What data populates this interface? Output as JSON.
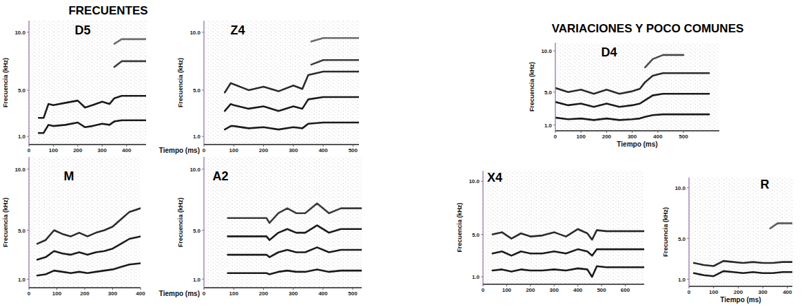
{
  "headings": [
    "FRECUENTES",
    "VARIACIONES Y POCO COMUNES"
  ],
  "chart_data": [
    {
      "type": "line",
      "title": "D5",
      "y_label": "Frecuencia (kHz)",
      "xlim": [
        0,
        480
      ],
      "ylim": [
        0.3,
        11
      ],
      "xticks": [
        0,
        100,
        200,
        300,
        400
      ],
      "yticks": [
        {
          "value": 1,
          "label": "1.0"
        },
        {
          "value": 5,
          "label": "5.0"
        },
        {
          "value": 10,
          "label": "10.0"
        }
      ],
      "series": [
        {
          "color": "#1a1a1a",
          "x": [
            40,
            60,
            80,
            100,
            150,
            200,
            230,
            260,
            300,
            330,
            350,
            380,
            480
          ],
          "values": [
            1.3,
            1.3,
            2.0,
            1.9,
            2.0,
            2.2,
            1.8,
            1.9,
            2.1,
            2.0,
            2.3,
            2.4,
            2.4
          ]
        },
        {
          "color": "#1a1a1a",
          "x": [
            40,
            60,
            80,
            100,
            150,
            200,
            230,
            260,
            300,
            330,
            350,
            380,
            480
          ],
          "values": [
            2.6,
            2.6,
            3.8,
            3.7,
            3.9,
            4.1,
            3.5,
            3.7,
            4.0,
            3.8,
            4.3,
            4.5,
            4.5
          ]
        },
        {
          "color": "#3a3a3a",
          "x": [
            350,
            380,
            480
          ],
          "values": [
            7.0,
            7.5,
            7.5
          ]
        },
        {
          "color": "#6a6a6a",
          "x": [
            350,
            380,
            480
          ],
          "values": [
            9.0,
            9.4,
            9.4
          ]
        }
      ]
    },
    {
      "type": "line",
      "title": "Z4",
      "x_label": "Tiempo (ms)",
      "y_label": "Frecuencia (kHz)",
      "xlim": [
        0,
        520
      ],
      "ylim": [
        0.3,
        11
      ],
      "xticks": [
        0,
        100,
        200,
        300,
        400,
        500
      ],
      "yticks": [
        {
          "value": 1,
          "label": "1.0"
        },
        {
          "value": 5,
          "label": "5.0"
        },
        {
          "value": 10,
          "label": "10.0"
        }
      ],
      "series": [
        {
          "color": "#1a1a1a",
          "x": [
            70,
            90,
            100,
            150,
            200,
            250,
            300,
            330,
            350,
            400,
            520
          ],
          "values": [
            1.6,
            1.9,
            1.9,
            1.7,
            1.8,
            1.6,
            1.8,
            1.7,
            2.1,
            2.2,
            2.2
          ]
        },
        {
          "color": "#1a1a1a",
          "x": [
            70,
            90,
            100,
            150,
            200,
            250,
            300,
            330,
            350,
            400,
            520
          ],
          "values": [
            3.2,
            3.8,
            3.7,
            3.4,
            3.6,
            3.2,
            3.6,
            3.4,
            4.2,
            4.4,
            4.4
          ]
        },
        {
          "color": "#2a2a2a",
          "x": [
            70,
            90,
            100,
            150,
            200,
            250,
            300,
            330,
            350,
            400,
            520
          ],
          "values": [
            4.8,
            5.6,
            5.5,
            5.0,
            5.3,
            4.9,
            5.4,
            5.1,
            6.3,
            6.6,
            6.6
          ]
        },
        {
          "color": "#3a3a3a",
          "x": [
            360,
            400,
            520
          ],
          "values": [
            7.2,
            7.6,
            7.6
          ]
        },
        {
          "color": "#6a6a6a",
          "x": [
            360,
            400,
            520
          ],
          "values": [
            9.2,
            9.5,
            9.5
          ]
        }
      ]
    },
    {
      "type": "line",
      "title": "M",
      "y_label": "Frecuencia (kHz)",
      "xlim": [
        0,
        400
      ],
      "ylim": [
        0.3,
        11
      ],
      "xticks": [
        0,
        100,
        200,
        300,
        400
      ],
      "yticks": [
        {
          "value": 1,
          "label": "1.0"
        },
        {
          "value": 5,
          "label": "5.0"
        },
        {
          "value": 10,
          "label": "10.0"
        }
      ],
      "series": [
        {
          "color": "#1a1a1a",
          "x": [
            30,
            60,
            90,
            120,
            150,
            180,
            210,
            240,
            270,
            300,
            330,
            360,
            400
          ],
          "values": [
            1.3,
            1.4,
            1.7,
            1.6,
            1.5,
            1.6,
            1.5,
            1.6,
            1.7,
            1.8,
            2.0,
            2.2,
            2.3
          ]
        },
        {
          "color": "#1a1a1a",
          "x": [
            30,
            60,
            90,
            120,
            150,
            180,
            210,
            240,
            270,
            300,
            330,
            360,
            400
          ],
          "values": [
            2.6,
            2.8,
            3.3,
            3.1,
            3.0,
            3.2,
            3.0,
            3.2,
            3.3,
            3.5,
            3.9,
            4.3,
            4.5
          ]
        },
        {
          "color": "#2a2a2a",
          "x": [
            30,
            60,
            90,
            120,
            150,
            180,
            210,
            240,
            270,
            300,
            330,
            360,
            400
          ],
          "values": [
            3.9,
            4.2,
            5.0,
            4.7,
            4.5,
            4.8,
            4.5,
            4.8,
            5.0,
            5.3,
            5.9,
            6.5,
            6.8
          ]
        }
      ]
    },
    {
      "type": "line",
      "title": "A2",
      "x_label": "Tiempo (ms)",
      "y_label": "Frecuencia (kHz)",
      "xlim": [
        0,
        530
      ],
      "ylim": [
        0.3,
        11
      ],
      "xticks": [
        0,
        100,
        200,
        300,
        400,
        500
      ],
      "yticks": [
        {
          "value": 1,
          "label": "1.0"
        },
        {
          "value": 5,
          "label": "5.0"
        },
        {
          "value": 10,
          "label": "10.0"
        }
      ],
      "series": [
        {
          "color": "#1a1a1a",
          "x": [
            80,
            120,
            160,
            210,
            220,
            250,
            280,
            310,
            340,
            380,
            420,
            460,
            500,
            530
          ],
          "values": [
            1.5,
            1.5,
            1.5,
            1.5,
            1.4,
            1.6,
            1.7,
            1.6,
            1.6,
            1.8,
            1.6,
            1.7,
            1.7,
            1.7
          ]
        },
        {
          "color": "#1a1a1a",
          "x": [
            80,
            120,
            160,
            210,
            220,
            250,
            280,
            310,
            340,
            380,
            420,
            460,
            500,
            530
          ],
          "values": [
            3.0,
            3.0,
            3.0,
            3.0,
            2.8,
            3.2,
            3.4,
            3.2,
            3.2,
            3.6,
            3.2,
            3.4,
            3.4,
            3.4
          ]
        },
        {
          "color": "#1a1a1a",
          "x": [
            80,
            120,
            160,
            210,
            220,
            250,
            280,
            310,
            340,
            380,
            420,
            460,
            500,
            530
          ],
          "values": [
            4.5,
            4.5,
            4.5,
            4.5,
            4.2,
            4.8,
            5.1,
            4.8,
            4.8,
            5.4,
            4.8,
            5.1,
            5.1,
            5.1
          ]
        },
        {
          "color": "#3a3a3a",
          "x": [
            80,
            120,
            160,
            210,
            220,
            250,
            280,
            310,
            340,
            380,
            420,
            460,
            500,
            530
          ],
          "values": [
            6.0,
            6.0,
            6.0,
            6.0,
            5.6,
            6.4,
            6.8,
            6.4,
            6.4,
            7.2,
            6.4,
            6.8,
            6.8,
            6.8
          ]
        }
      ]
    },
    {
      "type": "line",
      "title": "D4",
      "x_label": "Tiempo (ms)",
      "y_label": "Frecuencia (kHz)",
      "xlim": [
        0,
        640
      ],
      "ylim": [
        0.3,
        11
      ],
      "xticks": [
        0,
        100,
        200,
        300,
        400,
        500
      ],
      "yticks": [
        {
          "value": 1,
          "label": "1.0"
        },
        {
          "value": 5,
          "label": "5.0"
        },
        {
          "value": 10,
          "label": "10.0"
        }
      ],
      "series": [
        {
          "color": "#1a1a1a",
          "x": [
            0,
            50,
            100,
            150,
            200,
            250,
            300,
            330,
            350,
            380,
            420,
            500,
            600
          ],
          "values": [
            1.9,
            1.7,
            1.8,
            1.6,
            1.8,
            1.6,
            1.7,
            1.8,
            2.0,
            2.2,
            2.3,
            2.3,
            2.3
          ]
        },
        {
          "color": "#1a1a1a",
          "x": [
            0,
            50,
            100,
            150,
            200,
            250,
            300,
            330,
            350,
            380,
            420,
            500,
            600
          ],
          "values": [
            3.8,
            3.4,
            3.6,
            3.2,
            3.6,
            3.2,
            3.4,
            3.6,
            4.0,
            4.6,
            4.8,
            4.8,
            4.8
          ]
        },
        {
          "color": "#2a2a2a",
          "x": [
            0,
            50,
            100,
            150,
            200,
            250,
            300,
            330,
            350,
            380,
            420,
            500,
            600
          ],
          "values": [
            5.5,
            5.0,
            5.3,
            4.8,
            5.3,
            4.8,
            5.1,
            5.4,
            6.2,
            7.0,
            7.3,
            7.3,
            7.3
          ]
        },
        {
          "color": "#4a4a4a",
          "x": [
            350,
            380,
            420,
            500
          ],
          "values": [
            8.0,
            9.0,
            9.5,
            9.5
          ]
        }
      ]
    },
    {
      "type": "line",
      "title": "X4",
      "y_label": "Frecuencia (kHz)",
      "xlim": [
        0,
        680
      ],
      "ylim": [
        0.3,
        11
      ],
      "xticks": [
        0,
        100,
        200,
        300,
        400,
        500,
        600
      ],
      "yticks": [
        {
          "value": 1,
          "label": "1.0"
        },
        {
          "value": 5,
          "label": "5.0"
        },
        {
          "value": 10,
          "label": "10.0"
        }
      ],
      "series": [
        {
          "color": "#1a1a1a",
          "x": [
            40,
            80,
            120,
            160,
            200,
            250,
            300,
            350,
            400,
            440,
            460,
            480,
            520,
            600,
            680
          ],
          "values": [
            1.6,
            1.7,
            1.5,
            1.7,
            1.6,
            1.6,
            1.7,
            1.6,
            1.8,
            1.7,
            1.0,
            2.0,
            1.9,
            1.9,
            1.9
          ]
        },
        {
          "color": "#1a1a1a",
          "x": [
            40,
            80,
            120,
            160,
            200,
            250,
            300,
            350,
            400,
            440,
            460,
            480,
            520,
            600,
            680
          ],
          "values": [
            3.2,
            3.4,
            3.0,
            3.4,
            3.2,
            3.2,
            3.4,
            3.2,
            3.6,
            3.4,
            3.0,
            3.6,
            3.6,
            3.6,
            3.6
          ]
        },
        {
          "color": "#2a2a2a",
          "x": [
            40,
            80,
            120,
            160,
            200,
            250,
            300,
            350,
            400,
            440,
            460,
            480,
            520,
            600,
            680
          ],
          "values": [
            5.0,
            5.2,
            4.6,
            5.1,
            4.8,
            4.9,
            5.2,
            4.8,
            5.5,
            5.1,
            4.5,
            5.4,
            5.3,
            5.3,
            5.3
          ]
        }
      ]
    },
    {
      "type": "line",
      "title": "R",
      "x_label": "Tiempo (ms)",
      "y_label": "Frecuencia (kHz)",
      "xlim": [
        0,
        420
      ],
      "ylim": [
        0.3,
        11
      ],
      "xticks": [
        0,
        100,
        200,
        300,
        400
      ],
      "yticks": [
        {
          "value": 1,
          "label": "1.0"
        },
        {
          "value": 5,
          "label": "5.0"
        },
        {
          "value": 10,
          "label": "10.0"
        }
      ],
      "series": [
        {
          "color": "#1a1a1a",
          "x": [
            20,
            60,
            100,
            140,
            180,
            220,
            260,
            300,
            340,
            380,
            420
          ],
          "values": [
            1.6,
            1.4,
            1.3,
            1.8,
            1.7,
            1.6,
            1.7,
            1.6,
            1.6,
            1.7,
            1.7
          ]
        },
        {
          "color": "#2a2a2a",
          "x": [
            20,
            60,
            100,
            140,
            180,
            220,
            260,
            300,
            340,
            380,
            420
          ],
          "values": [
            2.6,
            2.4,
            2.3,
            2.8,
            2.7,
            2.6,
            2.7,
            2.6,
            2.6,
            2.7,
            2.7
          ]
        },
        {
          "color": "#5a5a5a",
          "x": [
            330,
            360,
            420
          ],
          "values": [
            6.0,
            6.5,
            6.5
          ]
        }
      ]
    }
  ]
}
